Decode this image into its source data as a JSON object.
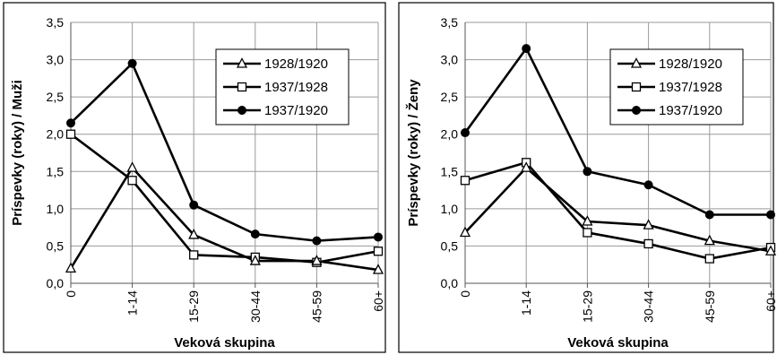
{
  "chart_data": [
    {
      "type": "line",
      "title": "",
      "xlabel": "Veková skupina",
      "ylabel": "Príspevky (roky) / Muži",
      "categories": [
        "0",
        "1-14",
        "15-29",
        "30-44",
        "45-59",
        "60+"
      ],
      "ylim": [
        0,
        3.5
      ],
      "yticks": [
        "0,0",
        "0,5",
        "1,0",
        "1,5",
        "2,0",
        "2,5",
        "3,0",
        "3,5"
      ],
      "grid": true,
      "legend_position": "top-right",
      "series": [
        {
          "name": "1928/1920",
          "marker": "triangle",
          "values": [
            0.2,
            1.55,
            0.65,
            0.3,
            0.3,
            0.18
          ]
        },
        {
          "name": "1937/1928",
          "marker": "square",
          "values": [
            2.0,
            1.38,
            0.38,
            0.35,
            0.28,
            0.43
          ]
        },
        {
          "name": "1937/1920",
          "marker": "circle",
          "values": [
            2.15,
            2.95,
            1.05,
            0.66,
            0.57,
            0.62
          ]
        }
      ]
    },
    {
      "type": "line",
      "title": "",
      "xlabel": "Veková skupina",
      "ylabel": "Príspevky (roky) / Ženy",
      "categories": [
        "0",
        "1-14",
        "15-29",
        "30-44",
        "45-59",
        "60+"
      ],
      "ylim": [
        0,
        3.5
      ],
      "yticks": [
        "0,0",
        "0,5",
        "1,0",
        "1,5",
        "2,0",
        "2,5",
        "3,0",
        "3,5"
      ],
      "grid": true,
      "legend_position": "top-right",
      "series": [
        {
          "name": "1928/1920",
          "marker": "triangle",
          "values": [
            0.68,
            1.55,
            0.83,
            0.78,
            0.57,
            0.43
          ]
        },
        {
          "name": "1937/1928",
          "marker": "square",
          "values": [
            1.38,
            1.62,
            0.68,
            0.53,
            0.33,
            0.48
          ]
        },
        {
          "name": "1937/1920",
          "marker": "circle",
          "values": [
            2.02,
            3.15,
            1.5,
            1.32,
            0.92,
            0.92
          ]
        }
      ]
    }
  ]
}
